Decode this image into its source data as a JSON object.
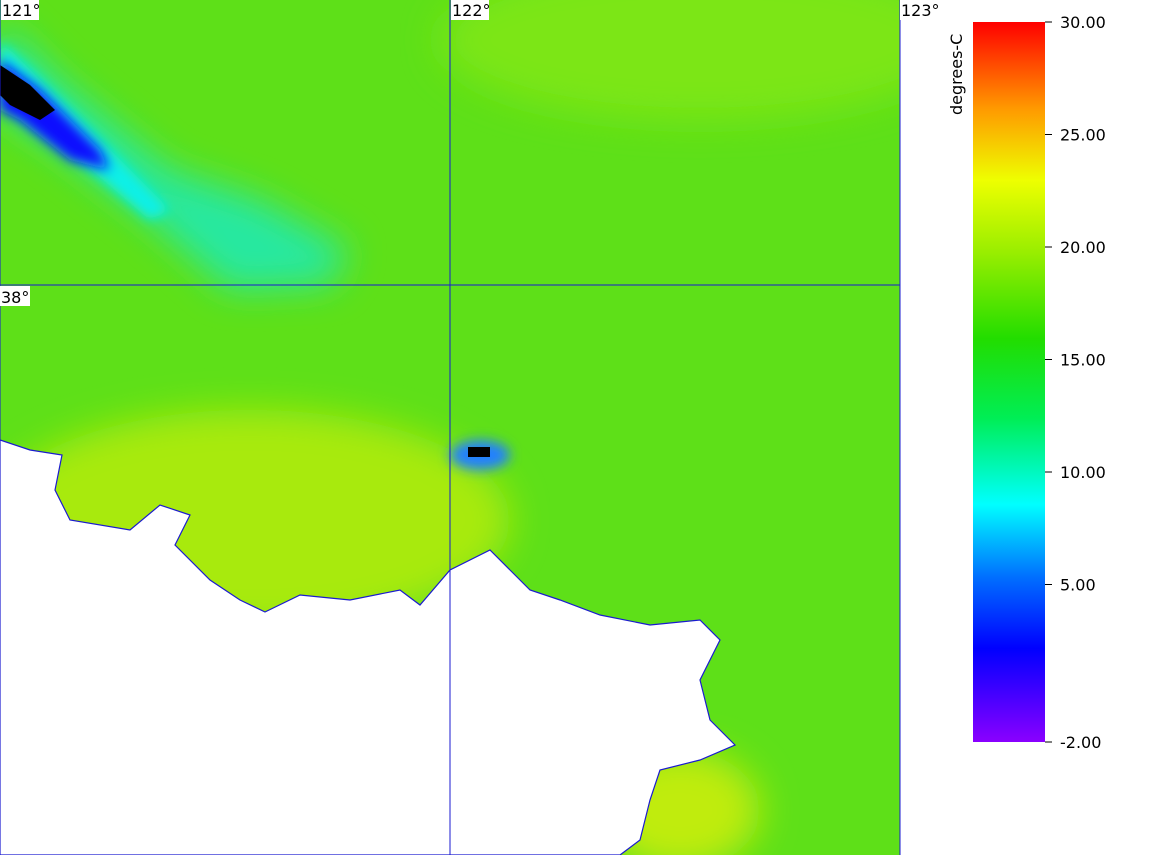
{
  "map": {
    "lon_ticks": [
      {
        "value": 121,
        "label": "121°"
      },
      {
        "value": 122,
        "label": "122°"
      },
      {
        "value": 123,
        "label": "123°"
      }
    ],
    "lat_ticks": [
      {
        "value": 38,
        "label": "38°"
      }
    ],
    "lonlim": [
      121,
      123
    ],
    "latlim": [
      37.0,
      38.5
    ]
  },
  "colorbar": {
    "label": "degrees-C",
    "lim": [
      -2,
      30
    ],
    "ticks": [
      {
        "value": 30,
        "label": "30.00"
      },
      {
        "value": 25,
        "label": "25.00"
      },
      {
        "value": 20,
        "label": "20.00"
      },
      {
        "value": 15,
        "label": "15.00"
      },
      {
        "value": 10,
        "label": "10.00"
      },
      {
        "value": 5,
        "label": "5.00"
      },
      {
        "value": -2,
        "label": "-2.00"
      }
    ]
  }
}
